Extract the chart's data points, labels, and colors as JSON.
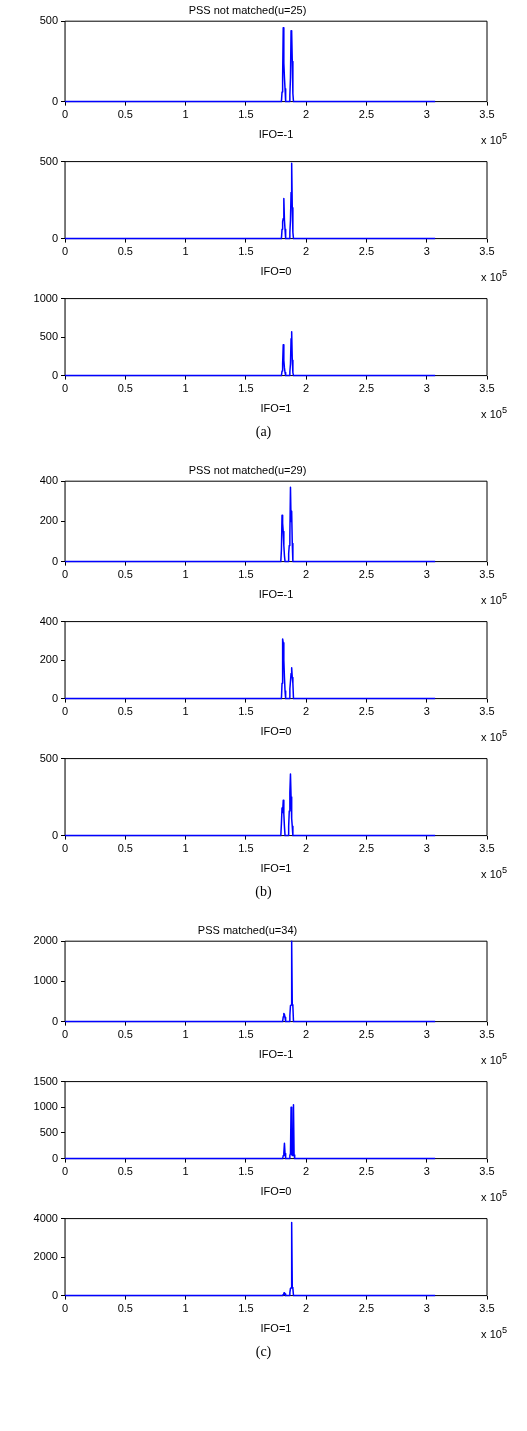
{
  "chart_data": [
    {
      "type": "line",
      "title": "PSS not matched(u=25)",
      "xlabel": "IFO=-1",
      "xlim": [
        0,
        3.5
      ],
      "xticks": [
        0,
        0.5,
        1,
        1.5,
        2,
        2.5,
        3,
        3.5
      ],
      "ylim": [
        0,
        500
      ],
      "yticks": [
        0,
        500
      ],
      "grid": false,
      "marker": "none",
      "annotations": [
        "x 10$^{5}$"
      ],
      "x": [
        0,
        1.795,
        1.8,
        1.805,
        1.81,
        1.815,
        1.82,
        1.825,
        1.83,
        1.86,
        1.865,
        1.87,
        1.875,
        1.88,
        1.885,
        1.89,
        1.895,
        3.07
      ],
      "series": [
        {
          "color": "#0000ff",
          "values": [
            0,
            0,
            60,
            150,
            460,
            240,
            150,
            80,
            0,
            0,
            40,
            150,
            440,
            430,
            250,
            50,
            0,
            0
          ]
        }
      ]
    },
    {
      "type": "line",
      "xlabel": "IFO=0",
      "xlim": [
        0,
        3.5
      ],
      "xticks": [
        0,
        0.5,
        1,
        1.5,
        2,
        2.5,
        3,
        3.5
      ],
      "ylim": [
        0,
        500
      ],
      "yticks": [
        0,
        500
      ],
      "grid": false,
      "marker": "none",
      "annotations": [
        "x 10$^{5}$"
      ],
      "x": [
        0,
        1.795,
        1.8,
        1.805,
        1.81,
        1.815,
        1.82,
        1.825,
        1.83,
        1.86,
        1.865,
        1.87,
        1.875,
        1.88,
        1.885,
        1.89,
        1.895,
        3.07
      ],
      "series": [
        {
          "color": "#0000ff",
          "values": [
            0,
            0,
            60,
            110,
            130,
            260,
            120,
            60,
            0,
            0,
            40,
            120,
            300,
            490,
            200,
            40,
            0,
            0
          ]
        }
      ]
    },
    {
      "type": "line",
      "xlabel": "IFO=1",
      "xlim": [
        0,
        3.5
      ],
      "xticks": [
        0,
        0.5,
        1,
        1.5,
        2,
        2.5,
        3,
        3.5
      ],
      "ylim": [
        0,
        1000
      ],
      "yticks": [
        0,
        500,
        1000
      ],
      "grid": false,
      "marker": "none",
      "annotations": [
        "x 10$^{5}$",
        "(a)"
      ],
      "x": [
        0,
        1.795,
        1.8,
        1.805,
        1.81,
        1.815,
        1.82,
        1.825,
        1.83,
        1.86,
        1.865,
        1.87,
        1.875,
        1.88,
        1.885,
        1.89,
        1.895,
        3.07
      ],
      "series": [
        {
          "color": "#0000ff",
          "values": [
            0,
            0,
            60,
            150,
            400,
            200,
            100,
            40,
            0,
            0,
            50,
            150,
            480,
            570,
            200,
            40,
            0,
            0
          ]
        }
      ]
    },
    {
      "type": "line",
      "title": "PSS not matched(u=29)",
      "xlabel": "IFO=-1",
      "xlim": [
        0,
        3.5
      ],
      "xticks": [
        0,
        0.5,
        1,
        1.5,
        2,
        2.5,
        3,
        3.5
      ],
      "ylim": [
        0,
        400
      ],
      "yticks": [
        0,
        200,
        400
      ],
      "grid": false,
      "marker": "none",
      "annotations": [
        "x 10$^{5}$"
      ],
      "x": [
        0,
        1.79,
        1.795,
        1.8,
        1.805,
        1.81,
        1.815,
        1.82,
        1.825,
        1.85,
        1.855,
        1.86,
        1.865,
        1.87,
        1.875,
        1.88,
        1.885,
        1.89,
        3.07
      ],
      "series": [
        {
          "color": "#0000ff",
          "values": [
            0,
            0,
            60,
            230,
            190,
            150,
            80,
            30,
            0,
            0,
            40,
            80,
            130,
            370,
            200,
            250,
            90,
            0,
            0
          ]
        }
      ]
    },
    {
      "type": "line",
      "xlabel": "IFO=0",
      "xlim": [
        0,
        3.5
      ],
      "xticks": [
        0,
        0.5,
        1,
        1.5,
        2,
        2.5,
        3,
        3.5
      ],
      "ylim": [
        0,
        400
      ],
      "yticks": [
        0,
        200,
        400
      ],
      "grid": false,
      "marker": "none",
      "annotations": [
        "x 10$^{5}$"
      ],
      "x": [
        0,
        1.795,
        1.8,
        1.805,
        1.81,
        1.815,
        1.82,
        1.825,
        1.83,
        1.86,
        1.865,
        1.87,
        1.875,
        1.88,
        1.885,
        1.89,
        1.895,
        3.07
      ],
      "series": [
        {
          "color": "#0000ff",
          "values": [
            0,
            0,
            80,
            310,
            290,
            200,
            110,
            40,
            0,
            0,
            50,
            90,
            130,
            160,
            110,
            80,
            0,
            0
          ]
        }
      ]
    },
    {
      "type": "line",
      "xlabel": "IFO=1",
      "xlim": [
        0,
        3.5
      ],
      "xticks": [
        0,
        0.5,
        1,
        1.5,
        2,
        2.5,
        3,
        3.5
      ],
      "ylim": [
        0,
        500
      ],
      "yticks": [
        0,
        500
      ],
      "grid": false,
      "marker": "none",
      "annotations": [
        "x 10$^{5}$",
        "(b)"
      ],
      "x": [
        0,
        1.79,
        1.795,
        1.8,
        1.805,
        1.81,
        1.815,
        1.82,
        1.825,
        1.85,
        1.855,
        1.86,
        1.865,
        1.87,
        1.875,
        1.88,
        1.885,
        1.89,
        3.07
      ],
      "series": [
        {
          "color": "#0000ff",
          "values": [
            0,
            0,
            80,
            180,
            150,
            230,
            140,
            60,
            0,
            0,
            60,
            160,
            280,
            400,
            250,
            110,
            60,
            0,
            0
          ]
        }
      ]
    },
    {
      "type": "line",
      "title": "PSS matched(u=34)",
      "xlabel": "IFO=-1",
      "xlim": [
        0,
        3.5
      ],
      "xticks": [
        0,
        0.5,
        1,
        1.5,
        2,
        2.5,
        3,
        3.5
      ],
      "ylim": [
        0,
        2000
      ],
      "yticks": [
        0,
        1000,
        2000
      ],
      "grid": false,
      "marker": "none",
      "annotations": [
        "x 10$^{5}$"
      ],
      "x": [
        0,
        1.805,
        1.81,
        1.815,
        1.82,
        1.825,
        1.83,
        1.86,
        1.865,
        1.87,
        1.875,
        1.88,
        1.885,
        1.89,
        1.895,
        3.07
      ],
      "series": [
        {
          "color": "#0000ff",
          "values": [
            0,
            0,
            120,
            200,
            180,
            100,
            0,
            0,
            150,
            400,
            410,
            2000,
            420,
            380,
            0,
            0
          ]
        }
      ]
    },
    {
      "type": "line",
      "xlabel": "IFO=0",
      "xlim": [
        0,
        3.5
      ],
      "xticks": [
        0,
        0.5,
        1,
        1.5,
        2,
        2.5,
        3,
        3.5
      ],
      "ylim": [
        0,
        1500
      ],
      "yticks": [
        0,
        500,
        1000,
        1500
      ],
      "grid": false,
      "marker": "none",
      "annotations": [
        "x 10$^{5}$"
      ],
      "x": [
        0,
        1.805,
        1.81,
        1.815,
        1.82,
        1.825,
        1.83,
        1.86,
        1.865,
        1.87,
        1.875,
        1.88,
        1.885,
        1.89,
        1.895,
        1.9,
        1.905,
        3.07
      ],
      "series": [
        {
          "color": "#0000ff",
          "values": [
            0,
            0,
            60,
            110,
            300,
            100,
            0,
            0,
            60,
            100,
            1000,
            80,
            60,
            100,
            1050,
            70,
            0,
            0
          ]
        }
      ]
    },
    {
      "type": "line",
      "xlabel": "IFO=1",
      "xlim": [
        0,
        3.5
      ],
      "xticks": [
        0,
        0.5,
        1,
        1.5,
        2,
        2.5,
        3,
        3.5
      ],
      "ylim": [
        0,
        4000
      ],
      "yticks": [
        0,
        2000,
        4000
      ],
      "grid": false,
      "marker": "none",
      "annotations": [
        "x 10$^{5}$",
        "(c)"
      ],
      "x": [
        0,
        1.805,
        1.81,
        1.815,
        1.82,
        1.825,
        1.83,
        1.86,
        1.865,
        1.87,
        1.875,
        1.88,
        1.885,
        1.89,
        1.895,
        3.07
      ],
      "series": [
        {
          "color": "#0000ff",
          "values": [
            0,
            0,
            60,
            130,
            150,
            80,
            0,
            0,
            150,
            380,
            400,
            3800,
            420,
            380,
            0,
            0
          ]
        }
      ]
    }
  ]
}
